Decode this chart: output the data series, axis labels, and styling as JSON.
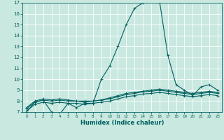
{
  "title": "",
  "xlabel": "Humidex (Indice chaleur)",
  "ylabel": "",
  "xlim": [
    -0.5,
    23.5
  ],
  "ylim": [
    7,
    17
  ],
  "yticks": [
    7,
    8,
    9,
    10,
    11,
    12,
    13,
    14,
    15,
    16,
    17
  ],
  "xticks": [
    0,
    1,
    2,
    3,
    4,
    5,
    6,
    7,
    8,
    9,
    10,
    11,
    12,
    13,
    14,
    15,
    16,
    17,
    18,
    19,
    20,
    21,
    22,
    23
  ],
  "bg_color": "#c8e8e0",
  "grid_color": "#ffffff",
  "line_color": "#006060",
  "curves": [
    {
      "x": [
        0,
        1,
        2,
        3,
        4,
        5,
        6,
        7,
        8,
        9,
        10,
        11,
        12,
        13,
        14,
        15,
        16,
        17,
        18,
        19,
        20,
        21,
        22,
        23
      ],
      "y": [
        7.0,
        7.9,
        8.1,
        7.0,
        6.8,
        7.8,
        7.4,
        7.8,
        7.8,
        10.0,
        11.2,
        13.0,
        15.0,
        16.5,
        17.0,
        17.2,
        17.2,
        12.2,
        9.5,
        9.0,
        8.5,
        9.3,
        9.5,
        9.0
      ]
    },
    {
      "x": [
        0,
        1,
        2,
        3,
        4,
        5,
        6,
        7,
        8,
        9,
        10,
        11,
        12,
        13,
        14,
        15,
        16,
        17,
        18,
        19,
        20,
        21,
        22,
        23
      ],
      "y": [
        7.4,
        8.0,
        8.2,
        8.1,
        8.2,
        8.1,
        8.0,
        8.0,
        8.0,
        8.1,
        8.3,
        8.5,
        8.7,
        8.8,
        8.9,
        9.0,
        9.1,
        9.0,
        8.9,
        8.8,
        8.7,
        8.8,
        8.9,
        8.8
      ]
    },
    {
      "x": [
        0,
        1,
        2,
        3,
        4,
        5,
        6,
        7,
        8,
        9,
        10,
        11,
        12,
        13,
        14,
        15,
        16,
        17,
        18,
        19,
        20,
        21,
        22,
        23
      ],
      "y": [
        7.3,
        7.9,
        8.1,
        8.0,
        8.1,
        8.0,
        8.0,
        7.9,
        8.0,
        8.1,
        8.2,
        8.4,
        8.6,
        8.7,
        8.85,
        8.9,
        9.0,
        8.9,
        8.8,
        8.7,
        8.6,
        8.7,
        8.8,
        8.7
      ]
    },
    {
      "x": [
        0,
        1,
        2,
        3,
        4,
        5,
        6,
        7,
        8,
        9,
        10,
        11,
        12,
        13,
        14,
        15,
        16,
        17,
        18,
        19,
        20,
        21,
        22,
        23
      ],
      "y": [
        7.1,
        7.7,
        7.9,
        7.8,
        7.9,
        7.8,
        7.8,
        7.7,
        7.8,
        7.9,
        8.0,
        8.2,
        8.4,
        8.5,
        8.65,
        8.7,
        8.8,
        8.7,
        8.6,
        8.5,
        8.4,
        8.5,
        8.6,
        8.5
      ]
    }
  ],
  "marker": "+",
  "markersize": 3,
  "linewidth": 0.8
}
